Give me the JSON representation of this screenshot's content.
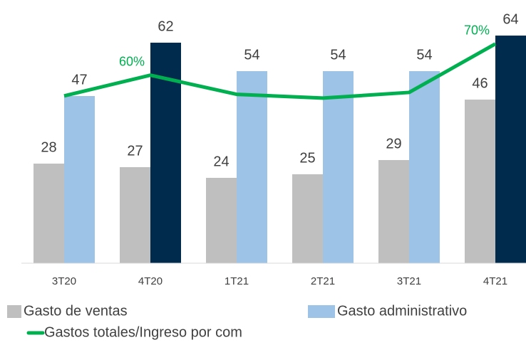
{
  "chart_data": {
    "type": "bar",
    "categories": [
      "3T20",
      "4T20",
      "1T21",
      "2T21",
      "3T21",
      "4T21"
    ],
    "ylim": [
      0,
      74
    ],
    "y2lim": [
      0,
      84
    ],
    "series": [
      {
        "name": "Gasto de ventas",
        "type": "bar",
        "color": "#bfbfbf",
        "values": [
          28,
          27,
          24,
          25,
          29,
          46
        ]
      },
      {
        "name": "Gasto administrativo",
        "type": "bar",
        "color": "#9dc3e6",
        "colors": [
          "#9dc3e6",
          "#002b4d",
          "#9dc3e6",
          "#9dc3e6",
          "#9dc3e6",
          "#002b4d"
        ],
        "values": [
          47,
          62,
          54,
          54,
          54,
          64
        ]
      },
      {
        "name": "Gastos totales/Ingreso por com",
        "type": "line",
        "axis": "y2",
        "color": "#00b050",
        "values": [
          53.4,
          60,
          53.9,
          52.7,
          54.5,
          70
        ],
        "value_labels": [
          null,
          "60%",
          null,
          null,
          null,
          "70%"
        ]
      }
    ]
  }
}
